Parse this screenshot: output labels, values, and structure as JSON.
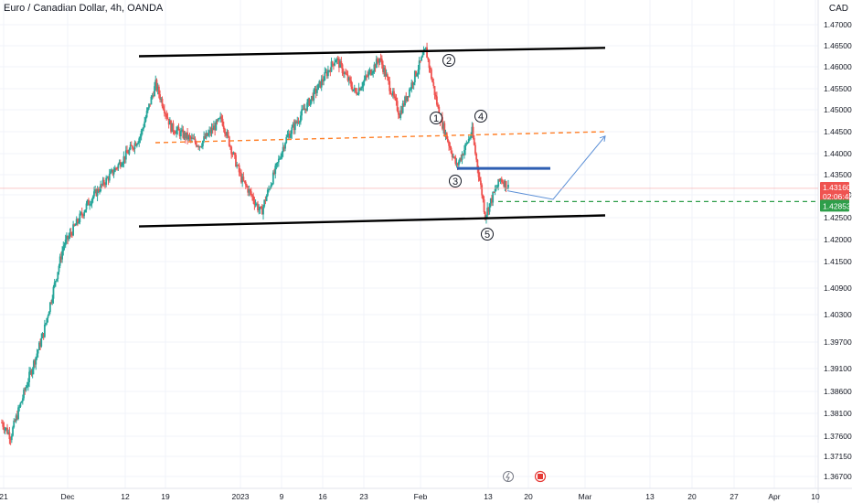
{
  "header": {
    "title": "Euro / Canadian Dollar, 4h, OANDA",
    "currency": "CAD"
  },
  "chart_data": {
    "type": "candlestick",
    "symbol": "EUR/CAD",
    "timeframe": "4h",
    "yaxis": {
      "ticks": [
        "1.47000",
        "1.46500",
        "1.46000",
        "1.45500",
        "1.45000",
        "1.44500",
        "1.44000",
        "1.43500",
        "1.43000",
        "1.42500",
        "1.42000",
        "1.41500",
        "1.40900",
        "1.40300",
        "1.39700",
        "1.39100",
        "1.38600",
        "1.38100",
        "1.37600",
        "1.37150",
        "1.36700"
      ]
    },
    "xaxis": {
      "ticks": [
        "21",
        "Dec",
        "12",
        "19",
        "2023",
        "9",
        "16",
        "23",
        "Feb",
        "13",
        "20",
        "Mar",
        "13",
        "20",
        "27",
        "Apr",
        "10"
      ]
    },
    "price_tags": {
      "last_price": "1.43160",
      "countdown": "02:06:44",
      "target_price": "1.42853"
    },
    "waves": [
      "1",
      "2",
      "3",
      "4",
      "5"
    ],
    "candle_segments": [
      {
        "start": 1.379,
        "end": 1.376,
        "n": 8
      },
      {
        "start": 1.376,
        "end": 1.387,
        "n": 14
      },
      {
        "start": 1.387,
        "end": 1.399,
        "n": 16
      },
      {
        "start": 1.399,
        "end": 1.4185,
        "n": 18
      },
      {
        "start": 1.4185,
        "end": 1.428,
        "n": 22
      },
      {
        "start": 1.428,
        "end": 1.436,
        "n": 24
      },
      {
        "start": 1.436,
        "end": 1.444,
        "n": 24
      },
      {
        "start": 1.444,
        "end": 1.456,
        "n": 14
      },
      {
        "start": 1.456,
        "end": 1.446,
        "n": 14
      },
      {
        "start": 1.446,
        "end": 1.442,
        "n": 26
      },
      {
        "start": 1.442,
        "end": 1.448,
        "n": 20
      },
      {
        "start": 1.448,
        "end": 1.434,
        "n": 18
      },
      {
        "start": 1.434,
        "end": 1.426,
        "n": 18
      },
      {
        "start": 1.426,
        "end": 1.443,
        "n": 22
      },
      {
        "start": 1.443,
        "end": 1.452,
        "n": 22
      },
      {
        "start": 1.452,
        "end": 1.462,
        "n": 24
      },
      {
        "start": 1.462,
        "end": 1.454,
        "n": 18
      },
      {
        "start": 1.454,
        "end": 1.462,
        "n": 22
      },
      {
        "start": 1.462,
        "end": 1.449,
        "n": 18
      },
      {
        "start": 1.449,
        "end": 1.458,
        "n": 14
      },
      {
        "start": 1.458,
        "end": 1.464,
        "n": 10
      },
      {
        "start": 1.464,
        "end": 1.449,
        "n": 12
      },
      {
        "start": 1.449,
        "end": 1.437,
        "n": 16
      },
      {
        "start": 1.437,
        "end": 1.445,
        "n": 14
      },
      {
        "start": 1.445,
        "end": 1.4255,
        "n": 12
      },
      {
        "start": 1.4255,
        "end": 1.434,
        "n": 14
      },
      {
        "start": 1.434,
        "end": 1.4316,
        "n": 8
      }
    ],
    "lines": [
      {
        "name": "channel-top",
        "color": "#000000",
        "style": "solid",
        "points": [
          [
            "Dec 13",
            1.4625
          ],
          [
            "Mar 1",
            1.4645
          ]
        ]
      },
      {
        "name": "channel-bottom",
        "color": "#000000",
        "style": "solid",
        "points": [
          [
            "Dec 13",
            1.423
          ],
          [
            "Mar 1",
            1.4255
          ]
        ]
      },
      {
        "name": "orange-level",
        "color": "#ff7f27",
        "style": "dashed",
        "points": [
          [
            "Dec 15",
            1.4425
          ],
          [
            "Mar 1",
            1.445
          ]
        ]
      },
      {
        "name": "blue-level",
        "color": "#2f5fb3",
        "style": "solid",
        "points": [
          [
            "Feb 8",
            1.4365
          ],
          [
            "Feb 24",
            1.4365
          ]
        ]
      },
      {
        "name": "green-target",
        "color": "#2e9e4a",
        "style": "dashed",
        "value": 1.42853
      },
      {
        "name": "projection",
        "color": "#5b8fd6",
        "style": "solid",
        "points": [
          [
            "Feb 15",
            1.431
          ],
          [
            "Feb 25",
            1.429
          ],
          [
            "Mar 1",
            1.444
          ]
        ]
      }
    ],
    "colors": {
      "up": "#26a69a",
      "down": "#ef5350",
      "background": "#ffffff",
      "last_price_tag": "#ef5350",
      "target_tag": "#2e9e4a"
    }
  }
}
